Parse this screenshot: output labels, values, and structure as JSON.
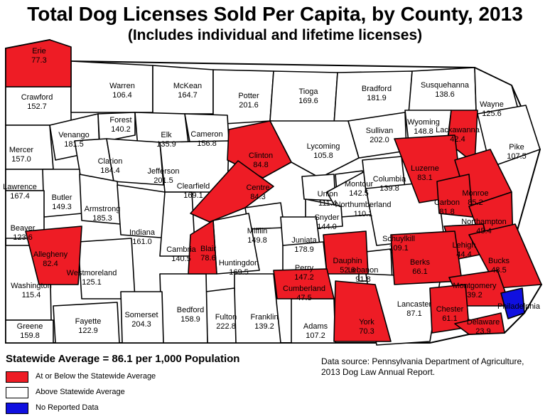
{
  "title": "Total Dog Licenses Sold Per Capita, by County, 2013",
  "subtitle": "(Includes individual and lifetime licenses)",
  "statewide_average": "Statewide Average = 86.1 per 1,000 Population",
  "legend": [
    {
      "label": "At or Below the Statewide Average",
      "color": "#ee1c25"
    },
    {
      "label": "Above Statewide Average",
      "color": "#ffffff"
    },
    {
      "label": "No Reported Data",
      "color": "#1010e0"
    }
  ],
  "source": {
    "line1": "Data source: Pennsylvania Department of Agriculture,",
    "line2": "2013 Dog Law Annual Report."
  },
  "colors": {
    "below": "#ee1c25",
    "above": "#ffffff",
    "nodata": "#1010e0"
  },
  "counties": [
    {
      "name": "Erie",
      "value": "77.3",
      "category": "below"
    },
    {
      "name": "Crawford",
      "value": "152.7",
      "category": "above"
    },
    {
      "name": "Warren",
      "value": "106.4",
      "category": "above"
    },
    {
      "name": "McKean",
      "value": "164.7",
      "category": "above"
    },
    {
      "name": "Potter",
      "value": "201.6",
      "category": "above"
    },
    {
      "name": "Tioga",
      "value": "169.6",
      "category": "above"
    },
    {
      "name": "Bradford",
      "value": "181.9",
      "category": "above"
    },
    {
      "name": "Susquehanna",
      "value": "138.6",
      "category": "above"
    },
    {
      "name": "Wayne",
      "value": "125.6",
      "category": "above"
    },
    {
      "name": "Mercer",
      "value": "157.0",
      "category": "above"
    },
    {
      "name": "Venango",
      "value": "181.5",
      "category": "above"
    },
    {
      "name": "Forest",
      "value": "140.2",
      "category": "above"
    },
    {
      "name": "Elk",
      "value": "135.9",
      "category": "above"
    },
    {
      "name": "Cameron",
      "value": "156.8",
      "category": "above"
    },
    {
      "name": "Clinton",
      "value": "84.8",
      "category": "below"
    },
    {
      "name": "Lycoming",
      "value": "105.8",
      "category": "above"
    },
    {
      "name": "Sullivan",
      "value": "202.0",
      "category": "above"
    },
    {
      "name": "Wyoming",
      "value": "148.8",
      "category": "above"
    },
    {
      "name": "Lackawanna",
      "value": "42.4",
      "category": "below"
    },
    {
      "name": "Pike",
      "value": "107.5",
      "category": "above"
    },
    {
      "name": "Lawrence",
      "value": "167.4",
      "category": "above"
    },
    {
      "name": "Clarion",
      "value": "184.4",
      "category": "above"
    },
    {
      "name": "Jefferson",
      "value": "201.5",
      "category": "above"
    },
    {
      "name": "Clearfield",
      "value": "169.1",
      "category": "above"
    },
    {
      "name": "Centre",
      "value": "84.3",
      "category": "below"
    },
    {
      "name": "Union",
      "value": "111.4",
      "category": "above"
    },
    {
      "name": "Montour",
      "value": "142.5",
      "category": "above"
    },
    {
      "name": "Northumberland",
      "value": "110.1",
      "category": "above"
    },
    {
      "name": "Columbia",
      "value": "139.8",
      "category": "above"
    },
    {
      "name": "Luzerne",
      "value": "83.1",
      "category": "below"
    },
    {
      "name": "Monroe",
      "value": "85.2",
      "category": "below"
    },
    {
      "name": "Butler",
      "value": "149.3",
      "category": "above"
    },
    {
      "name": "Armstrong",
      "value": "185.3",
      "category": "above"
    },
    {
      "name": "Indiana",
      "value": "161.0",
      "category": "above"
    },
    {
      "name": "Beaver",
      "value": "123.6",
      "category": "above"
    },
    {
      "name": "Carbon",
      "value": "81.8",
      "category": "below"
    },
    {
      "name": "Northampton",
      "value": "45.4",
      "category": "below"
    },
    {
      "name": "Snyder",
      "value": "144.0",
      "category": "above"
    },
    {
      "name": "Mifflin",
      "value": "149.8",
      "category": "above"
    },
    {
      "name": "Juniata",
      "value": "178.9",
      "category": "above"
    },
    {
      "name": "Schuylkill",
      "value": "109.1",
      "category": "above"
    },
    {
      "name": "Lehigh",
      "value": "44.4",
      "category": "below"
    },
    {
      "name": "Allegheny",
      "value": "82.4",
      "category": "below"
    },
    {
      "name": "Cambria",
      "value": "140.5",
      "category": "above"
    },
    {
      "name": "Blair",
      "value": "78.6",
      "category": "below"
    },
    {
      "name": "Huntingdon",
      "value": "169.5",
      "category": "above"
    },
    {
      "name": "Perry",
      "value": "147.2",
      "category": "above"
    },
    {
      "name": "Dauphin",
      "value": "52.6",
      "category": "below"
    },
    {
      "name": "Lebanon",
      "value": "91.8",
      "category": "above"
    },
    {
      "name": "Berks",
      "value": "66.1",
      "category": "below"
    },
    {
      "name": "Bucks",
      "value": "48.5",
      "category": "below"
    },
    {
      "name": "Westmoreland",
      "value": "125.1",
      "category": "above"
    },
    {
      "name": "Washington",
      "value": "115.4",
      "category": "above"
    },
    {
      "name": "Cumberland",
      "value": "47.5",
      "category": "below"
    },
    {
      "name": "Montgomery",
      "value": "39.2",
      "category": "below"
    },
    {
      "name": "Lancaster",
      "value": "87.1",
      "category": "above"
    },
    {
      "name": "Chester",
      "value": "61.1",
      "category": "below"
    },
    {
      "name": "Philadelphia",
      "value": "",
      "category": "nodata"
    },
    {
      "name": "Delaware",
      "value": "23.9",
      "category": "below"
    },
    {
      "name": "York",
      "value": "70.3",
      "category": "below"
    },
    {
      "name": "Adams",
      "value": "107.2",
      "category": "above"
    },
    {
      "name": "Franklin",
      "value": "139.2",
      "category": "above"
    },
    {
      "name": "Fulton",
      "value": "222.8",
      "category": "above"
    },
    {
      "name": "Bedford",
      "value": "158.9",
      "category": "above"
    },
    {
      "name": "Somerset",
      "value": "204.3",
      "category": "above"
    },
    {
      "name": "Fayette",
      "value": "122.9",
      "category": "above"
    },
    {
      "name": "Greene",
      "value": "159.8",
      "category": "above"
    }
  ]
}
